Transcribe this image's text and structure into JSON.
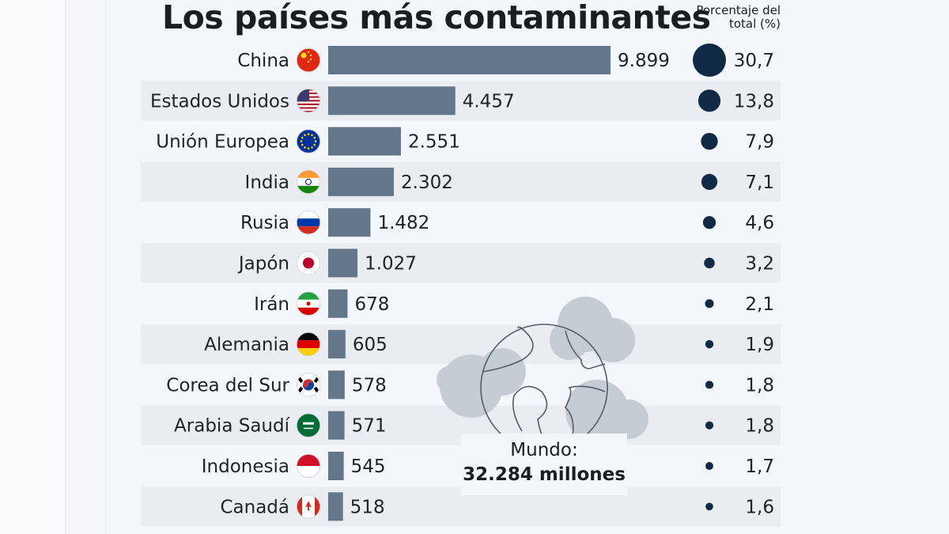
{
  "chart_data": {
    "type": "bar",
    "title": "Los países más contaminantes",
    "percent_header": "Porcentaje del total (%)",
    "categories": [
      "China",
      "Estados Unidos",
      "Unión Europea",
      "India",
      "Rusia",
      "Japón",
      "Irán",
      "Alemania",
      "Corea del Sur",
      "Arabia Saudí",
      "Indonesia",
      "Canadá"
    ],
    "values": [
      9899,
      4457,
      2551,
      2302,
      1482,
      1027,
      678,
      605,
      578,
      571,
      545,
      518
    ],
    "value_labels": [
      "9.899",
      "4.457",
      "2.551",
      "2.302",
      "1.482",
      "1.027",
      "678",
      "605",
      "578",
      "571",
      "545",
      "518"
    ],
    "percent": [
      30.7,
      13.8,
      7.9,
      7.1,
      4.6,
      3.2,
      2.1,
      1.9,
      1.8,
      1.8,
      1.7,
      1.6
    ],
    "percent_labels": [
      "30,7",
      "13,8",
      "7,9",
      "7,1",
      "4,6",
      "3,2",
      "2,1",
      "1,9",
      "1,8",
      "1,8",
      "1,7",
      "1,6"
    ],
    "flags": [
      "cn",
      "us",
      "eu",
      "in",
      "ru",
      "jp",
      "ir",
      "de",
      "kr",
      "sa",
      "id",
      "ca"
    ],
    "annotation": {
      "label": "Mundo:",
      "value": "32.284 millones"
    },
    "colors": {
      "bar": "#64768a",
      "circle": "#102a43",
      "stripe": "#e9edf2"
    }
  }
}
